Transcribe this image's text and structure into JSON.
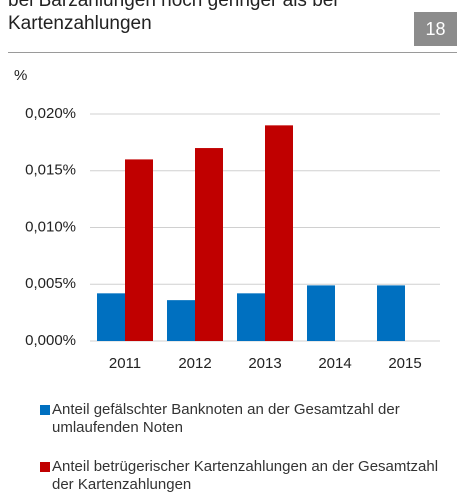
{
  "chart_data": {
    "type": "bar",
    "title": "bei Barzahlungen noch geringer als bei Kartenzahlungen",
    "page_number": "18",
    "y_label": "%",
    "categories": [
      "2011",
      "2012",
      "2013",
      "2014",
      "2015"
    ],
    "series": [
      {
        "name": "Anteil gefälschter Banknoten an der Gesamtzahl der umlaufenden Noten",
        "color": "#0070c0",
        "values": [
          0.0042,
          0.0036,
          0.0042,
          0.0049,
          0.0049
        ]
      },
      {
        "name": "Anteil betrügerischer Kartenzahlungen an der Gesamtzahl der Kartenzahlungen",
        "color": "#c00000",
        "values": [
          0.016,
          0.017,
          0.019,
          null,
          null
        ]
      }
    ],
    "ylim": [
      0,
      0.02
    ],
    "yticks": [
      {
        "value": 0,
        "label": "0,000%"
      },
      {
        "value": 0.005,
        "label": "0,005%"
      },
      {
        "value": 0.01,
        "label": "0,010%"
      },
      {
        "value": 0.015,
        "label": "0,015%"
      },
      {
        "value": 0.02,
        "label": "0,020%"
      }
    ],
    "grid": true
  }
}
